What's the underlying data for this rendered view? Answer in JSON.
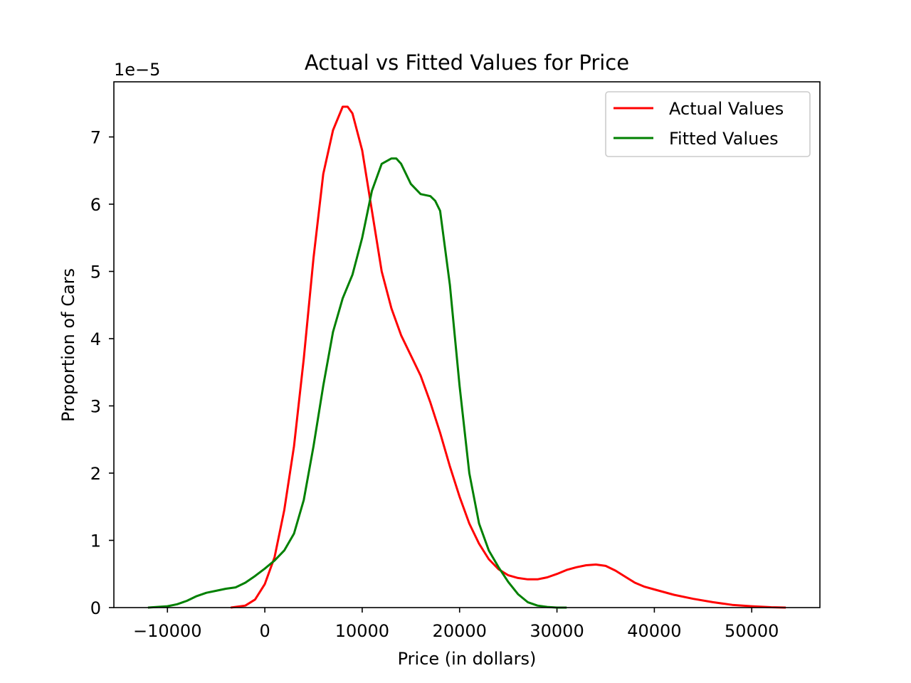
{
  "chart_data": {
    "type": "line",
    "title": "Actual vs Fitted Values for Price",
    "xlabel": "Price (in dollars)",
    "ylabel": "Proportion of Cars",
    "y_offset_label": "1e−5",
    "xlim": [
      -15500,
      57000
    ],
    "ylim": [
      0,
      7.82
    ],
    "xticks": [
      -10000,
      0,
      10000,
      20000,
      30000,
      40000,
      50000
    ],
    "xtick_labels": [
      "−10000",
      "0",
      "10000",
      "20000",
      "30000",
      "40000",
      "50000"
    ],
    "yticks": [
      0,
      1,
      2,
      3,
      4,
      5,
      6,
      7
    ],
    "ytick_labels": [
      "0",
      "1",
      "2",
      "3",
      "4",
      "5",
      "6",
      "7"
    ],
    "grid": false,
    "legend_position": "top-right",
    "series": [
      {
        "name": "Actual Values",
        "color": "#ff0000",
        "x": [
          -3500,
          -2000,
          -1000,
          0,
          1000,
          2000,
          3000,
          4000,
          5000,
          6000,
          7000,
          8000,
          8500,
          9000,
          10000,
          11000,
          12000,
          13000,
          14000,
          15000,
          16000,
          17000,
          18000,
          19000,
          20000,
          21000,
          22000,
          23000,
          24000,
          25000,
          26000,
          27000,
          28000,
          29000,
          30000,
          31000,
          32000,
          33000,
          34000,
          35000,
          36000,
          37000,
          38000,
          39000,
          40000,
          42000,
          44000,
          46000,
          48000,
          50000,
          52000,
          53500
        ],
        "y": [
          0,
          0.03,
          0.12,
          0.35,
          0.75,
          1.45,
          2.4,
          3.7,
          5.2,
          6.45,
          7.1,
          7.45,
          7.45,
          7.35,
          6.8,
          5.9,
          5.0,
          4.45,
          4.05,
          3.75,
          3.45,
          3.05,
          2.6,
          2.1,
          1.65,
          1.25,
          0.95,
          0.72,
          0.57,
          0.48,
          0.44,
          0.42,
          0.42,
          0.45,
          0.5,
          0.56,
          0.6,
          0.63,
          0.64,
          0.62,
          0.55,
          0.46,
          0.37,
          0.31,
          0.27,
          0.19,
          0.13,
          0.08,
          0.04,
          0.02,
          0.005,
          0
        ]
      },
      {
        "name": "Fitted Values",
        "color": "#008000",
        "x": [
          -12000,
          -10000,
          -9000,
          -8000,
          -7000,
          -6000,
          -5000,
          -4000,
          -3000,
          -2000,
          -1000,
          0,
          1000,
          2000,
          3000,
          4000,
          5000,
          6000,
          7000,
          8000,
          9000,
          10000,
          11000,
          12000,
          13000,
          13500,
          14000,
          15000,
          16000,
          17000,
          17500,
          18000,
          19000,
          20000,
          21000,
          22000,
          23000,
          24000,
          25000,
          26000,
          27000,
          28000,
          29000,
          30000,
          31000
        ],
        "y": [
          0,
          0.02,
          0.05,
          0.1,
          0.17,
          0.22,
          0.25,
          0.28,
          0.3,
          0.37,
          0.47,
          0.58,
          0.7,
          0.85,
          1.1,
          1.6,
          2.4,
          3.3,
          4.1,
          4.6,
          4.95,
          5.5,
          6.2,
          6.6,
          6.68,
          6.68,
          6.6,
          6.3,
          6.15,
          6.12,
          6.05,
          5.9,
          4.8,
          3.3,
          2.0,
          1.25,
          0.85,
          0.6,
          0.38,
          0.2,
          0.08,
          0.03,
          0.01,
          0,
          0
        ]
      }
    ]
  }
}
